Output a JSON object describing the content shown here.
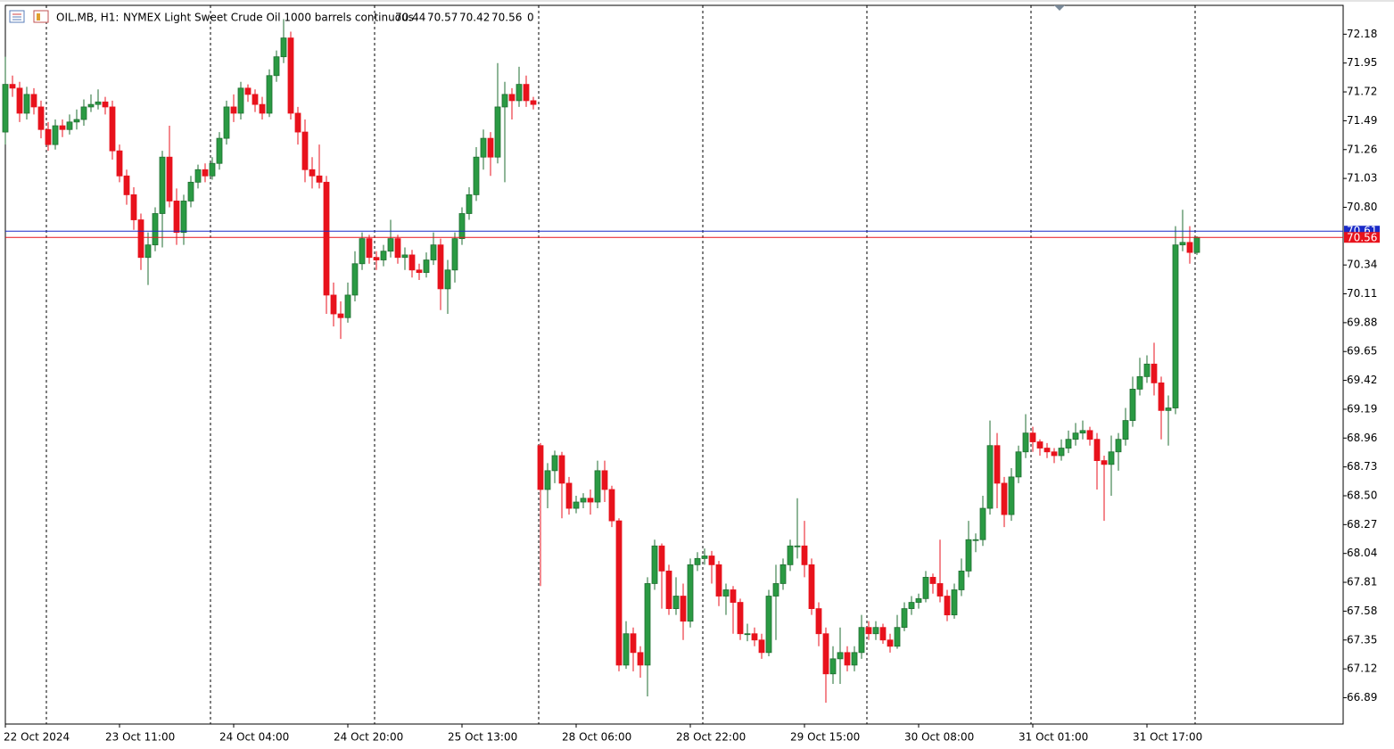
{
  "chart_data": {
    "type": "candlestick",
    "symbol": "OIL.MB, H1:",
    "description": "NYMEX Light Sweet Crude Oil 1000 barrels continuous",
    "volume": 0,
    "bid": 70.56,
    "ask": 70.61,
    "ylim": [
      66.68,
      72.41
    ],
    "yticks": [
      72.18,
      71.95,
      71.72,
      71.49,
      71.26,
      71.03,
      {
        "value": 70.8,
        "label": "70.80"
      },
      70.34,
      70.11,
      69.88,
      69.65,
      69.42,
      69.19,
      68.96,
      68.73,
      {
        "value": 68.5,
        "label": "68.50"
      },
      68.27,
      68.04,
      67.81,
      67.58,
      67.35,
      67.12,
      66.89
    ],
    "categories": [
      "22 Oct 2024",
      null,
      null,
      null,
      null,
      null,
      null,
      null,
      null,
      null,
      null,
      null,
      null,
      null,
      null,
      null,
      "23 Oct 11:00",
      null,
      null,
      null,
      null,
      null,
      null,
      null,
      null,
      null,
      null,
      null,
      null,
      null,
      null,
      null,
      "24 Oct 04:00",
      null,
      null,
      null,
      null,
      null,
      null,
      null,
      null,
      null,
      null,
      null,
      null,
      null,
      null,
      null,
      "24 Oct 20:00",
      null,
      null,
      null,
      null,
      null,
      null,
      null,
      null,
      null,
      null,
      null,
      null,
      null,
      null,
      null,
      "25 Oct 13:00",
      null,
      null,
      null,
      null,
      null,
      null,
      null,
      null,
      null,
      null,
      null,
      null,
      null,
      null,
      null,
      "28 Oct 06:00",
      null,
      null,
      null,
      null,
      null,
      null,
      null,
      null,
      null,
      null,
      null,
      null,
      null,
      null,
      null,
      "28 Oct 22:00",
      null,
      null,
      null,
      null,
      null,
      null,
      null,
      null,
      null,
      null,
      null,
      null,
      null,
      null,
      null,
      "29 Oct 15:00",
      null,
      null,
      null,
      null,
      null,
      null,
      null,
      null,
      null,
      null,
      null,
      null,
      null,
      null,
      null,
      "30 Oct 08:00",
      null,
      null,
      null,
      null,
      null,
      null,
      null,
      null,
      null,
      null,
      null,
      null,
      null,
      null,
      null,
      "31 Oct 01:00",
      null,
      null,
      null,
      null,
      null,
      null,
      null,
      null,
      null,
      null,
      null,
      null,
      null,
      null,
      null,
      "31 Oct 17:00",
      null,
      null,
      null,
      null,
      null,
      null,
      null
    ],
    "ohlc": [
      [
        71.4,
        72.0,
        71.3,
        71.78
      ],
      [
        71.78,
        71.85,
        71.68,
        71.75
      ],
      [
        71.75,
        71.8,
        71.48,
        71.55
      ],
      [
        71.55,
        71.76,
        71.5,
        71.7
      ],
      [
        71.7,
        71.75,
        71.54,
        71.6
      ],
      [
        71.6,
        71.65,
        71.35,
        71.42
      ],
      [
        71.42,
        71.48,
        71.25,
        71.3
      ],
      [
        71.3,
        71.5,
        71.26,
        71.45
      ],
      [
        71.45,
        71.5,
        71.36,
        71.42
      ],
      [
        71.42,
        71.54,
        71.38,
        71.48
      ],
      [
        71.48,
        71.58,
        71.42,
        71.5
      ],
      [
        71.5,
        71.66,
        71.45,
        71.6
      ],
      [
        71.6,
        71.7,
        71.56,
        71.62
      ],
      [
        71.62,
        71.74,
        71.58,
        71.64
      ],
      [
        71.64,
        71.68,
        71.54,
        71.6
      ],
      [
        71.6,
        71.65,
        71.18,
        71.25
      ],
      [
        71.25,
        71.3,
        71.0,
        71.05
      ],
      [
        71.05,
        71.1,
        70.82,
        70.9
      ],
      [
        70.9,
        70.96,
        70.62,
        70.7
      ],
      [
        70.7,
        70.75,
        70.3,
        70.4
      ],
      [
        70.4,
        70.6,
        70.18,
        70.5
      ],
      [
        70.5,
        70.8,
        70.45,
        70.75
      ],
      [
        70.75,
        71.25,
        70.48,
        71.2
      ],
      [
        71.2,
        71.45,
        70.8,
        70.85
      ],
      [
        70.85,
        70.95,
        70.5,
        70.6
      ],
      [
        70.6,
        70.9,
        70.5,
        70.85
      ],
      [
        70.85,
        71.05,
        70.8,
        71.0
      ],
      [
        71.0,
        71.14,
        70.95,
        71.1
      ],
      [
        71.1,
        71.15,
        71.0,
        71.05
      ],
      [
        71.05,
        71.2,
        71.02,
        71.15
      ],
      [
        71.15,
        71.4,
        71.1,
        71.35
      ],
      [
        71.35,
        71.65,
        71.3,
        71.6
      ],
      [
        71.6,
        71.7,
        71.48,
        71.55
      ],
      [
        71.55,
        71.8,
        71.5,
        71.75
      ],
      [
        71.75,
        71.78,
        71.64,
        71.7
      ],
      [
        71.7,
        71.74,
        71.56,
        71.62
      ],
      [
        71.62,
        71.68,
        71.5,
        71.55
      ],
      [
        71.55,
        71.9,
        71.52,
        71.85
      ],
      [
        71.85,
        72.05,
        71.8,
        72.0
      ],
      [
        72.0,
        72.3,
        71.95,
        72.15
      ],
      [
        72.15,
        72.2,
        71.5,
        71.55
      ],
      [
        71.55,
        71.6,
        71.3,
        71.4
      ],
      [
        71.4,
        71.5,
        71.0,
        71.1
      ],
      [
        71.1,
        71.2,
        70.95,
        71.05
      ],
      [
        71.05,
        71.3,
        70.95,
        71.0
      ],
      [
        71.0,
        71.05,
        69.95,
        70.1
      ],
      [
        70.1,
        70.2,
        69.85,
        69.95
      ],
      [
        69.95,
        70.05,
        69.75,
        69.92
      ],
      [
        69.92,
        70.2,
        69.88,
        70.1
      ],
      [
        70.1,
        70.45,
        70.05,
        70.35
      ],
      [
        70.35,
        70.6,
        70.3,
        70.55
      ],
      [
        70.55,
        70.58,
        70.35,
        70.4
      ],
      [
        70.4,
        70.45,
        70.3,
        70.38
      ],
      [
        70.38,
        70.5,
        70.33,
        70.45
      ],
      [
        70.45,
        70.7,
        70.4,
        70.55
      ],
      [
        70.55,
        70.58,
        70.35,
        70.4
      ],
      [
        70.4,
        70.48,
        70.3,
        70.42
      ],
      [
        70.42,
        70.46,
        70.24,
        70.3
      ],
      [
        70.3,
        70.35,
        70.22,
        70.28
      ],
      [
        70.28,
        70.44,
        70.24,
        70.38
      ],
      [
        70.38,
        70.6,
        70.34,
        70.5
      ],
      [
        70.5,
        70.55,
        69.98,
        70.15
      ],
      [
        70.15,
        70.38,
        69.95,
        70.3
      ],
      [
        70.3,
        70.6,
        70.2,
        70.55
      ],
      [
        70.55,
        70.8,
        70.5,
        70.75
      ],
      [
        70.75,
        70.96,
        70.7,
        70.9
      ],
      [
        70.9,
        71.28,
        70.85,
        71.2
      ],
      [
        71.2,
        71.42,
        71.1,
        71.35
      ],
      [
        71.35,
        71.4,
        71.05,
        71.2
      ],
      [
        71.2,
        71.95,
        71.15,
        71.6
      ],
      [
        71.6,
        71.8,
        71.0,
        71.7
      ],
      [
        71.7,
        71.75,
        71.5,
        71.65
      ],
      [
        71.65,
        71.92,
        71.6,
        71.78
      ],
      [
        71.78,
        71.85,
        71.6,
        71.65
      ],
      [
        71.65,
        71.68,
        71.58,
        71.62
      ],
      [
        68.9,
        68.92,
        67.78,
        68.55
      ],
      [
        68.55,
        68.76,
        68.4,
        68.7
      ],
      [
        68.7,
        68.86,
        68.6,
        68.82
      ],
      [
        68.82,
        68.85,
        68.32,
        68.6
      ],
      [
        68.6,
        68.65,
        68.35,
        68.4
      ],
      [
        68.4,
        68.5,
        68.36,
        68.45
      ],
      [
        68.45,
        68.52,
        68.4,
        68.48
      ],
      [
        68.48,
        68.55,
        68.35,
        68.45
      ],
      [
        68.45,
        68.78,
        68.4,
        68.7
      ],
      [
        68.7,
        68.78,
        68.45,
        68.55
      ],
      [
        68.55,
        68.58,
        68.25,
        68.3
      ],
      [
        68.3,
        68.32,
        67.1,
        67.15
      ],
      [
        67.15,
        67.5,
        67.12,
        67.4
      ],
      [
        67.4,
        67.45,
        67.1,
        67.25
      ],
      [
        67.25,
        67.3,
        67.05,
        67.15
      ],
      [
        67.15,
        67.85,
        66.9,
        67.8
      ],
      [
        67.8,
        68.15,
        67.75,
        68.1
      ],
      [
        68.1,
        68.12,
        67.6,
        67.9
      ],
      [
        67.9,
        67.95,
        67.55,
        67.6
      ],
      [
        67.6,
        67.85,
        67.55,
        67.7
      ],
      [
        67.7,
        67.8,
        67.35,
        67.5
      ],
      [
        67.5,
        68.0,
        67.45,
        67.95
      ],
      [
        67.95,
        68.05,
        67.9,
        68.0
      ],
      [
        68.0,
        68.08,
        67.95,
        68.02
      ],
      [
        68.02,
        68.06,
        67.8,
        67.95
      ],
      [
        67.95,
        67.98,
        67.62,
        67.7
      ],
      [
        67.7,
        67.8,
        67.55,
        67.75
      ],
      [
        67.75,
        67.78,
        67.4,
        67.65
      ],
      [
        67.65,
        67.68,
        67.35,
        67.4
      ],
      [
        67.4,
        67.48,
        67.34,
        67.4
      ],
      [
        67.4,
        67.45,
        67.3,
        67.35
      ],
      [
        67.35,
        67.4,
        67.2,
        67.25
      ],
      [
        67.25,
        67.75,
        67.22,
        67.7
      ],
      [
        67.7,
        67.95,
        67.35,
        67.8
      ],
      [
        67.8,
        68.0,
        67.75,
        67.95
      ],
      [
        67.95,
        68.15,
        67.9,
        68.1
      ],
      [
        68.1,
        68.48,
        68.0,
        68.1
      ],
      [
        68.1,
        68.3,
        67.85,
        67.95
      ],
      [
        67.95,
        68.0,
        67.55,
        67.6
      ],
      [
        67.6,
        67.65,
        67.3,
        67.4
      ],
      [
        67.4,
        67.45,
        66.85,
        67.08
      ],
      [
        67.08,
        67.3,
        67.0,
        67.2
      ],
      [
        67.2,
        67.45,
        67.0,
        67.25
      ],
      [
        67.25,
        67.3,
        67.1,
        67.15
      ],
      [
        67.15,
        67.3,
        67.1,
        67.25
      ],
      [
        67.25,
        67.55,
        67.2,
        67.45
      ],
      [
        67.45,
        67.5,
        67.35,
        67.4
      ],
      [
        67.4,
        67.5,
        67.35,
        67.45
      ],
      [
        67.45,
        67.48,
        67.32,
        67.35
      ],
      [
        67.35,
        67.4,
        67.25,
        67.3
      ],
      [
        67.3,
        67.55,
        67.28,
        67.45
      ],
      [
        67.45,
        67.65,
        67.42,
        67.6
      ],
      [
        67.6,
        67.7,
        67.55,
        67.65
      ],
      [
        67.65,
        67.72,
        67.6,
        67.68
      ],
      [
        67.68,
        67.9,
        67.65,
        67.85
      ],
      [
        67.85,
        67.88,
        67.72,
        67.8
      ],
      [
        67.8,
        68.15,
        67.65,
        67.7
      ],
      [
        67.7,
        67.75,
        67.5,
        67.55
      ],
      [
        67.55,
        67.8,
        67.52,
        67.75
      ],
      [
        67.75,
        68.0,
        67.7,
        67.9
      ],
      [
        67.9,
        68.3,
        67.85,
        68.15
      ],
      [
        68.15,
        68.2,
        68.05,
        68.15
      ],
      [
        68.15,
        68.5,
        68.1,
        68.4
      ],
      [
        68.4,
        69.1,
        68.35,
        68.9
      ],
      [
        68.9,
        69.0,
        68.4,
        68.6
      ],
      [
        68.6,
        68.65,
        68.25,
        68.35
      ],
      [
        68.35,
        68.72,
        68.3,
        68.65
      ],
      [
        68.65,
        68.9,
        68.6,
        68.85
      ],
      [
        68.85,
        69.15,
        68.8,
        69.0
      ],
      [
        69.0,
        69.05,
        68.85,
        68.93
      ],
      [
        68.93,
        68.95,
        68.82,
        68.88
      ],
      [
        68.88,
        68.92,
        68.8,
        68.85
      ],
      [
        68.85,
        68.88,
        68.76,
        68.82
      ],
      [
        68.82,
        68.95,
        68.78,
        68.88
      ],
      [
        68.88,
        69.02,
        68.84,
        68.95
      ],
      [
        68.95,
        69.08,
        68.9,
        69.0
      ],
      [
        69.0,
        69.1,
        68.95,
        69.02
      ],
      [
        69.02,
        69.05,
        68.9,
        68.95
      ],
      [
        68.95,
        69.0,
        68.55,
        68.78
      ],
      [
        68.78,
        68.82,
        68.3,
        68.75
      ],
      [
        68.75,
        68.98,
        68.5,
        68.85
      ],
      [
        68.85,
        69.0,
        68.7,
        68.95
      ],
      [
        68.95,
        69.2,
        68.9,
        69.1
      ],
      [
        69.1,
        69.45,
        69.05,
        69.35
      ],
      [
        69.35,
        69.6,
        69.3,
        69.45
      ],
      [
        69.45,
        69.62,
        69.4,
        69.55
      ],
      [
        69.55,
        69.72,
        69.3,
        69.4
      ],
      [
        69.4,
        69.45,
        68.95,
        69.18
      ],
      [
        69.18,
        69.3,
        68.9,
        69.2
      ],
      [
        69.2,
        70.65,
        69.15,
        70.5
      ],
      [
        70.5,
        70.78,
        70.45,
        70.52
      ],
      [
        70.52,
        70.65,
        70.35,
        70.44
      ],
      [
        70.44,
        70.57,
        70.42,
        70.56
      ]
    ]
  }
}
